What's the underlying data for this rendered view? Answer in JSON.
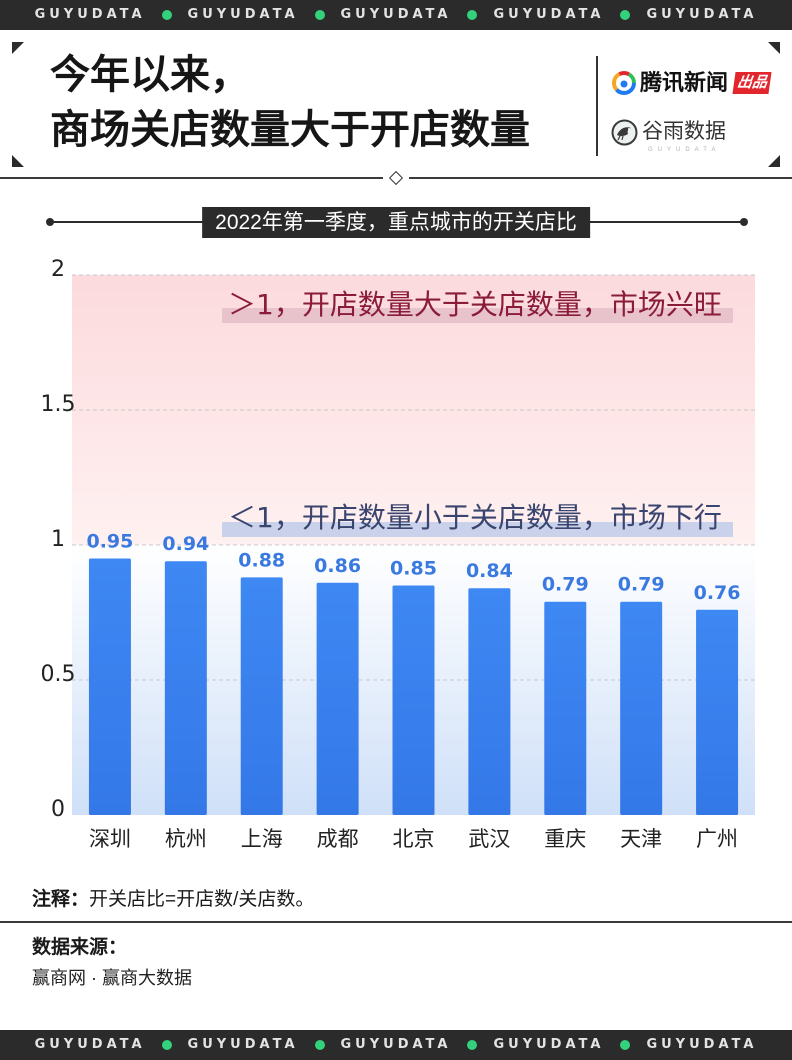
{
  "brand_band": {
    "label": "GUYUDATA"
  },
  "header": {
    "title_line1": "今年以来，",
    "title_line2": "商场关店数量大于开店数量",
    "publisher_name": "腾讯新闻",
    "publisher_tag": "出品",
    "publisher_icon": "tencent-news-logo-icon",
    "studio_name": "谷雨数据",
    "studio_sub": "GUYUDATA",
    "studio_icon": "guyu-bird-logo-icon"
  },
  "chart_data": {
    "type": "bar",
    "title": "2022年第一季度，重点城市的开关店比",
    "categories": [
      "深圳",
      "杭州",
      "上海",
      "成都",
      "北京",
      "武汉",
      "重庆",
      "天津",
      "广州"
    ],
    "values": [
      0.95,
      0.94,
      0.88,
      0.86,
      0.85,
      0.84,
      0.79,
      0.79,
      0.76
    ],
    "ylim": [
      0,
      2
    ],
    "yticks": [
      0,
      0.5,
      1,
      1.5,
      2
    ],
    "grid": true,
    "annotations": [
      {
        "text": "＞1，开店数量大于关店数量，市场兴旺",
        "range": [
          1,
          2
        ]
      },
      {
        "text": "＜1，开店数量小于关店数量，市场下行",
        "range": [
          0,
          1
        ]
      }
    ]
  },
  "footer": {
    "note_label": "注释：",
    "note_text": "开关店比=开店数/关店数。",
    "source_label": "数据来源：",
    "source_text": "赢商网 · 赢商大数据"
  },
  "colors": {
    "band_bg": "#2b2b2b",
    "band_dot": "#34d17c",
    "bar": "#3b84f0",
    "value_label": "#3a7ae0",
    "zone_above_one": "#fcdadd",
    "zone_below_one": "#cfe0f8",
    "annotation_above_one": "#8a1c3a",
    "annotation_below_one": "#39456f",
    "publisher_tag": "#e3262d"
  }
}
